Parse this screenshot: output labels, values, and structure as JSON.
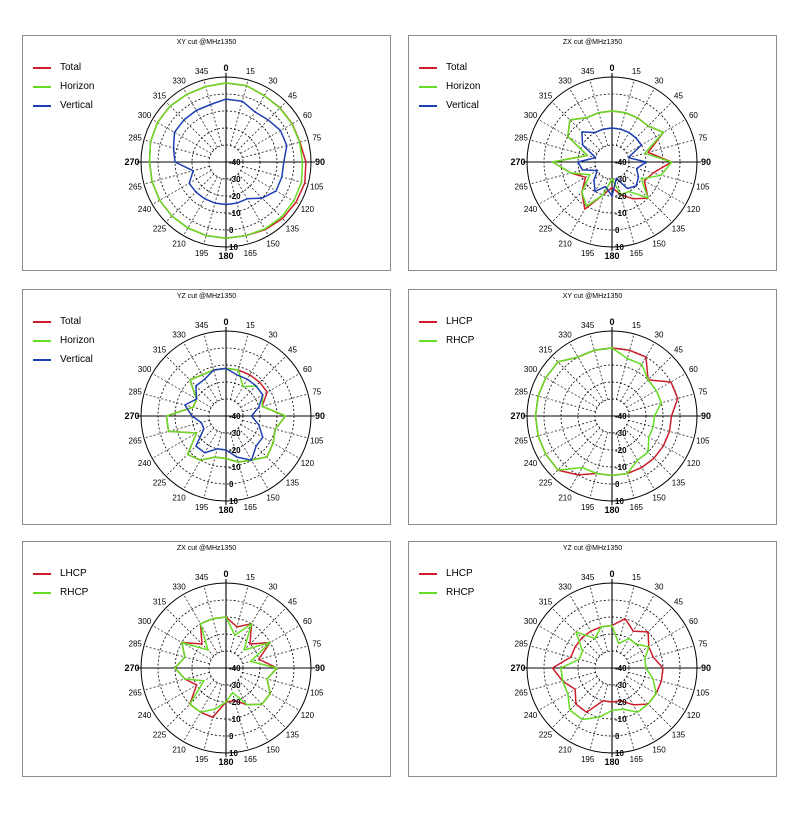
{
  "chart_data": [
    {
      "type": "polar",
      "title": "XY cut @MHz1350",
      "r_ticks": [
        "-40",
        "-30",
        "-20",
        "-10",
        "0",
        "10"
      ],
      "angle_ticks": [
        "0",
        "15",
        "30",
        "45",
        "60",
        "75",
        "90",
        "105",
        "120",
        "135",
        "150",
        "165",
        "180",
        "195",
        "210",
        "225",
        "240",
        "265",
        "270",
        "285",
        "300",
        "315",
        "330",
        "345"
      ],
      "series": [
        {
          "name": "Total",
          "color": "#cc1f2b",
          "r": [
            6.5,
            6.5,
            5,
            5,
            5,
            5,
            7,
            8,
            7.5,
            7,
            6,
            4.8,
            4.8,
            4.8,
            4.8,
            5,
            5,
            5,
            5,
            6,
            6.5,
            6.5,
            6,
            6
          ]
        },
        {
          "name": "Horizon",
          "color": "#66dd22",
          "r": [
            6.5,
            6.5,
            5,
            4.8,
            4.8,
            4.8,
            5,
            6,
            6,
            6,
            5.5,
            4.8,
            4.8,
            4.8,
            4.8,
            5,
            5,
            5,
            5,
            6,
            6.5,
            6.5,
            6,
            6
          ]
        },
        {
          "name": "Vertical",
          "color": "#1e3fb3",
          "r": [
            -3,
            -3,
            -6,
            -5,
            -3,
            -3,
            -6,
            -6,
            -6,
            -10,
            -15,
            -15,
            -15,
            -15,
            -15,
            -15,
            -15,
            -20,
            -10,
            -8,
            -5,
            -5,
            -5,
            -5
          ]
        }
      ]
    },
    {
      "type": "polar",
      "title": "ZX cut @MHz1350",
      "r_ticks": [
        "-40",
        "-30",
        "-20",
        "-10",
        "0",
        "10"
      ],
      "angle_ticks": [
        "0",
        "15",
        "30",
        "45",
        "60",
        "75",
        "90",
        "105",
        "120",
        "135",
        "150",
        "165",
        "180",
        "195",
        "210",
        "225",
        "240",
        "265",
        "270",
        "285",
        "300",
        "315",
        "330",
        "345"
      ],
      "series": [
        {
          "name": "Total",
          "color": "#cc1f2b",
          "r": [
            -10,
            -10,
            -10,
            -10,
            -5,
            -18,
            -5,
            -15,
            -18,
            -10,
            -15,
            -20,
            -25,
            -20,
            -8,
            -15,
            -22,
            -15,
            -5,
            -25,
            -10,
            -5,
            -10,
            -10
          ]
        },
        {
          "name": "Horizon",
          "color": "#66dd22",
          "r": [
            -10,
            -10,
            -10,
            -10,
            -5,
            -20,
            -5,
            -10,
            -20,
            -10,
            -20,
            -20,
            -30,
            -20,
            -10,
            -15,
            -25,
            -15,
            -5,
            -25,
            -10,
            -5,
            -10,
            -10
          ]
        },
        {
          "name": "Vertical",
          "color": "#1e3fb3",
          "r": [
            -20,
            -20,
            -20,
            -20,
            -20,
            -30,
            -20,
            -25,
            -22,
            -20,
            -22,
            -30,
            -20,
            -25,
            -20,
            -25,
            -30,
            -22,
            -20,
            -30,
            -20,
            -15,
            -20,
            -20
          ]
        }
      ]
    },
    {
      "type": "polar",
      "title": "YZ cut @MHz1350",
      "r_ticks": [
        "-40",
        "-30",
        "-20",
        "-10",
        "0",
        "10"
      ],
      "angle_ticks": [
        "0",
        "15",
        "30",
        "45",
        "60",
        "75",
        "90",
        "105",
        "120",
        "135",
        "150",
        "165",
        "180",
        "195",
        "210",
        "225",
        "240",
        "265",
        "270",
        "285",
        "300",
        "315",
        "330",
        "345"
      ],
      "series": [
        {
          "name": "Total",
          "color": "#cc1f2b",
          "r": [
            -12,
            -12,
            -12,
            -12,
            -12,
            -18,
            -5,
            -10,
            -8,
            -6,
            -10,
            -12,
            -15,
            -15,
            -10,
            -8,
            -20,
            -5,
            -5,
            -20,
            -20,
            -10,
            -12,
            -12
          ]
        },
        {
          "name": "Horizon",
          "color": "#66dd22",
          "r": [
            -12,
            -12,
            -20,
            -15,
            -15,
            -18,
            -5,
            -10,
            -8,
            -6,
            -10,
            -12,
            -15,
            -15,
            -10,
            -8,
            -20,
            -5,
            -5,
            -20,
            -20,
            -10,
            -12,
            -12
          ]
        },
        {
          "name": "Vertical",
          "color": "#1e3fb3",
          "r": [
            -12,
            -15,
            -15,
            -15,
            -15,
            -20,
            -25,
            -20,
            -15,
            -15,
            -10,
            -15,
            -20,
            -20,
            -15,
            -15,
            -25,
            -25,
            -20,
            -15,
            -20,
            -15,
            -15,
            -12
          ]
        }
      ]
    },
    {
      "type": "polar",
      "title": "XY cut @MHz1350",
      "r_ticks": [
        "-40",
        "-30",
        "-20",
        "-10",
        "0",
        "10"
      ],
      "angle_ticks": [
        "0",
        "15",
        "30",
        "45",
        "60",
        "75",
        "90",
        "105",
        "120",
        "135",
        "150",
        "165",
        "180",
        "195",
        "210",
        "225",
        "240",
        "265",
        "270",
        "285",
        "300",
        "315",
        "330",
        "345"
      ],
      "series": [
        {
          "name": "LHCP",
          "color": "#cc1f2b",
          "r": [
            0,
            0,
            0,
            -10,
            0,
            0,
            -5,
            -5,
            -5,
            -5,
            -5,
            -5,
            -5,
            -5,
            0,
            5,
            5,
            5,
            5,
            5,
            5,
            5,
            0,
            0
          ]
        },
        {
          "name": "RHCP",
          "color": "#66dd22",
          "r": [
            0,
            -5,
            -5,
            -10,
            -10,
            -10,
            -15,
            -15,
            -15,
            -10,
            -10,
            -5,
            -5,
            -5,
            -5,
            5,
            5,
            5,
            5,
            5,
            5,
            5,
            0,
            0
          ]
        }
      ]
    },
    {
      "type": "polar",
      "title": "ZX cut @MHz1350",
      "r_ticks": [
        "-40",
        "-30",
        "-20",
        "-10",
        "0",
        "10"
      ],
      "angle_ticks": [
        "0",
        "15",
        "30",
        "45",
        "60",
        "75",
        "90",
        "105",
        "120",
        "135",
        "150",
        "165",
        "180",
        "195",
        "210",
        "225",
        "240",
        "265",
        "270",
        "285",
        "300",
        "315",
        "330",
        "345"
      ],
      "series": [
        {
          "name": "LHCP",
          "color": "#cc1f2b",
          "r": [
            -10,
            -15,
            -10,
            -20,
            -10,
            -20,
            -10,
            -15,
            -10,
            -10,
            -15,
            -20,
            -20,
            -10,
            -10,
            -10,
            -20,
            -15,
            -10,
            -15,
            -10,
            -20,
            -10,
            -10
          ]
        },
        {
          "name": "RHCP",
          "color": "#66dd22",
          "r": [
            -10,
            -20,
            -10,
            -25,
            -10,
            -25,
            -10,
            -15,
            -10,
            -10,
            -15,
            -25,
            -20,
            -15,
            -10,
            -10,
            -25,
            -15,
            -10,
            -15,
            -10,
            -25,
            -10,
            -10
          ]
        }
      ]
    },
    {
      "type": "polar",
      "title": "YZ cut @MHz1350",
      "r_ticks": [
        "-40",
        "-30",
        "-20",
        "-10",
        "0",
        "10"
      ],
      "angle_ticks": [
        "0",
        "15",
        "30",
        "45",
        "60",
        "75",
        "90",
        "105",
        "120",
        "135",
        "150",
        "165",
        "180",
        "195",
        "210",
        "225",
        "240",
        "265",
        "270",
        "285",
        "300",
        "315",
        "330",
        "345"
      ],
      "series": [
        {
          "name": "LHCP",
          "color": "#cc1f2b",
          "r": [
            -15,
            -10,
            -15,
            -10,
            -15,
            -15,
            -10,
            -10,
            -10,
            -10,
            -15,
            -20,
            -20,
            -20,
            -10,
            -10,
            -15,
            -10,
            -5,
            -15,
            -15,
            -15,
            -15,
            -15
          ]
        },
        {
          "name": "RHCP",
          "color": "#66dd22",
          "r": [
            -15,
            -25,
            -20,
            -20,
            -15,
            -20,
            -20,
            -15,
            -10,
            -10,
            -10,
            -15,
            -15,
            -10,
            -5,
            -5,
            -10,
            -10,
            -10,
            -20,
            -20,
            -10,
            -20,
            -15
          ]
        }
      ]
    }
  ]
}
